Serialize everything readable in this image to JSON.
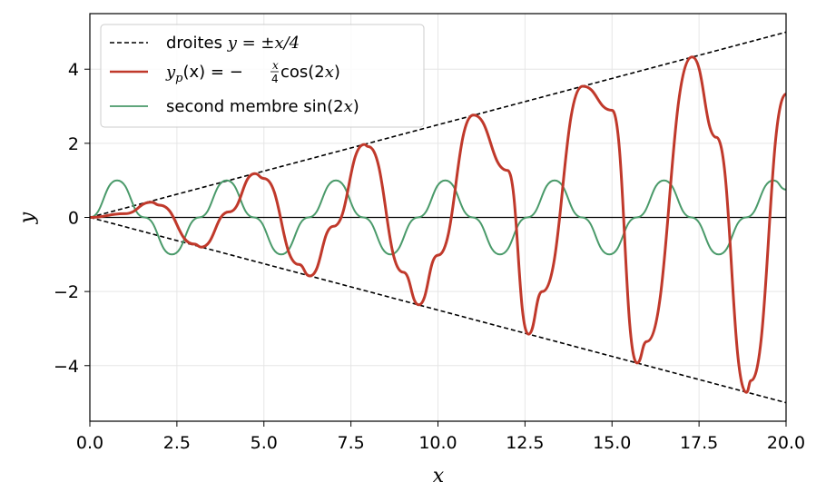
{
  "chart_data": {
    "type": "line",
    "xlabel": "x",
    "ylabel": "y",
    "xlim": [
      0,
      20
    ],
    "ylim": [
      -5.5,
      5.5
    ],
    "xticks": [
      0,
      2.5,
      5,
      7.5,
      10,
      12.5,
      15,
      17.5,
      20
    ],
    "xtick_labels": [
      "0.0",
      "2.5",
      "5.0",
      "7.5",
      "10.0",
      "12.5",
      "15.0",
      "17.5",
      "20.0"
    ],
    "yticks": [
      -4,
      -2,
      0,
      2,
      4
    ],
    "ytick_labels": [
      "−4",
      "−2",
      "0",
      "2",
      "4"
    ],
    "grid": true,
    "legend_position": "top-left",
    "series": [
      {
        "name": "droites y = ±x/4",
        "color": "#000000",
        "style": "dashed",
        "x": [
          0,
          20
        ],
        "upper": [
          0,
          5
        ],
        "lower": [
          0,
          -5
        ]
      },
      {
        "name": "y_p(x) = −(x/4)cos(2x)",
        "color": "#c0392b",
        "style": "solid",
        "x": [
          0,
          1,
          1.77,
          2,
          3,
          3.2,
          4,
          4.74,
          5,
          6,
          6.32,
          7,
          7.88,
          8,
          9,
          9.45,
          10,
          11.02,
          12,
          12.6,
          13,
          14.16,
          15,
          15.72,
          16,
          17.3,
          18,
          18.86,
          19,
          20
        ],
        "y": [
          0,
          0.1,
          0.41,
          0.33,
          -0.72,
          -0.8,
          0.15,
          1.18,
          1.05,
          -1.27,
          -1.58,
          -0.24,
          1.97,
          1.91,
          -1.48,
          -2.36,
          -1.02,
          2.76,
          1.27,
          -3.15,
          -2.0,
          3.54,
          2.89,
          -3.93,
          -3.35,
          4.33,
          2.16,
          -4.72,
          -4.4,
          3.33
        ]
      },
      {
        "name": "second membre sin(2x)",
        "color": "#4a9a6a",
        "style": "solid",
        "x": [
          0,
          0.785,
          1.571,
          2.356,
          3.142,
          3.927,
          4.712,
          5.498,
          6.283,
          7.069,
          7.854,
          8.639,
          9.425,
          10.21,
          10.996,
          11.781,
          12.566,
          13.352,
          14.137,
          14.923,
          15.708,
          16.493,
          17.279,
          18.064,
          18.85,
          19.635,
          20
        ],
        "y": [
          0,
          1,
          0,
          -1,
          0,
          1,
          0,
          -1,
          0,
          1,
          0,
          -1,
          0,
          1,
          0,
          -1,
          0,
          1,
          0,
          -1,
          0,
          1,
          0,
          -1,
          0,
          1,
          0.75
        ]
      }
    ],
    "legend": {
      "entries": [
        {
          "prefix": "droites ",
          "math": "y = ±x/4"
        },
        {
          "prefix": "",
          "math": "y",
          "sub": "p",
          "rest": "(x) = −",
          "frac_num": "x",
          "frac_den": "4",
          "tail": "cos(2",
          "tail_var": "x",
          "tail_end": ")"
        },
        {
          "prefix": "second membre sin(2",
          "math": "x",
          "suffix": ")"
        }
      ]
    }
  }
}
